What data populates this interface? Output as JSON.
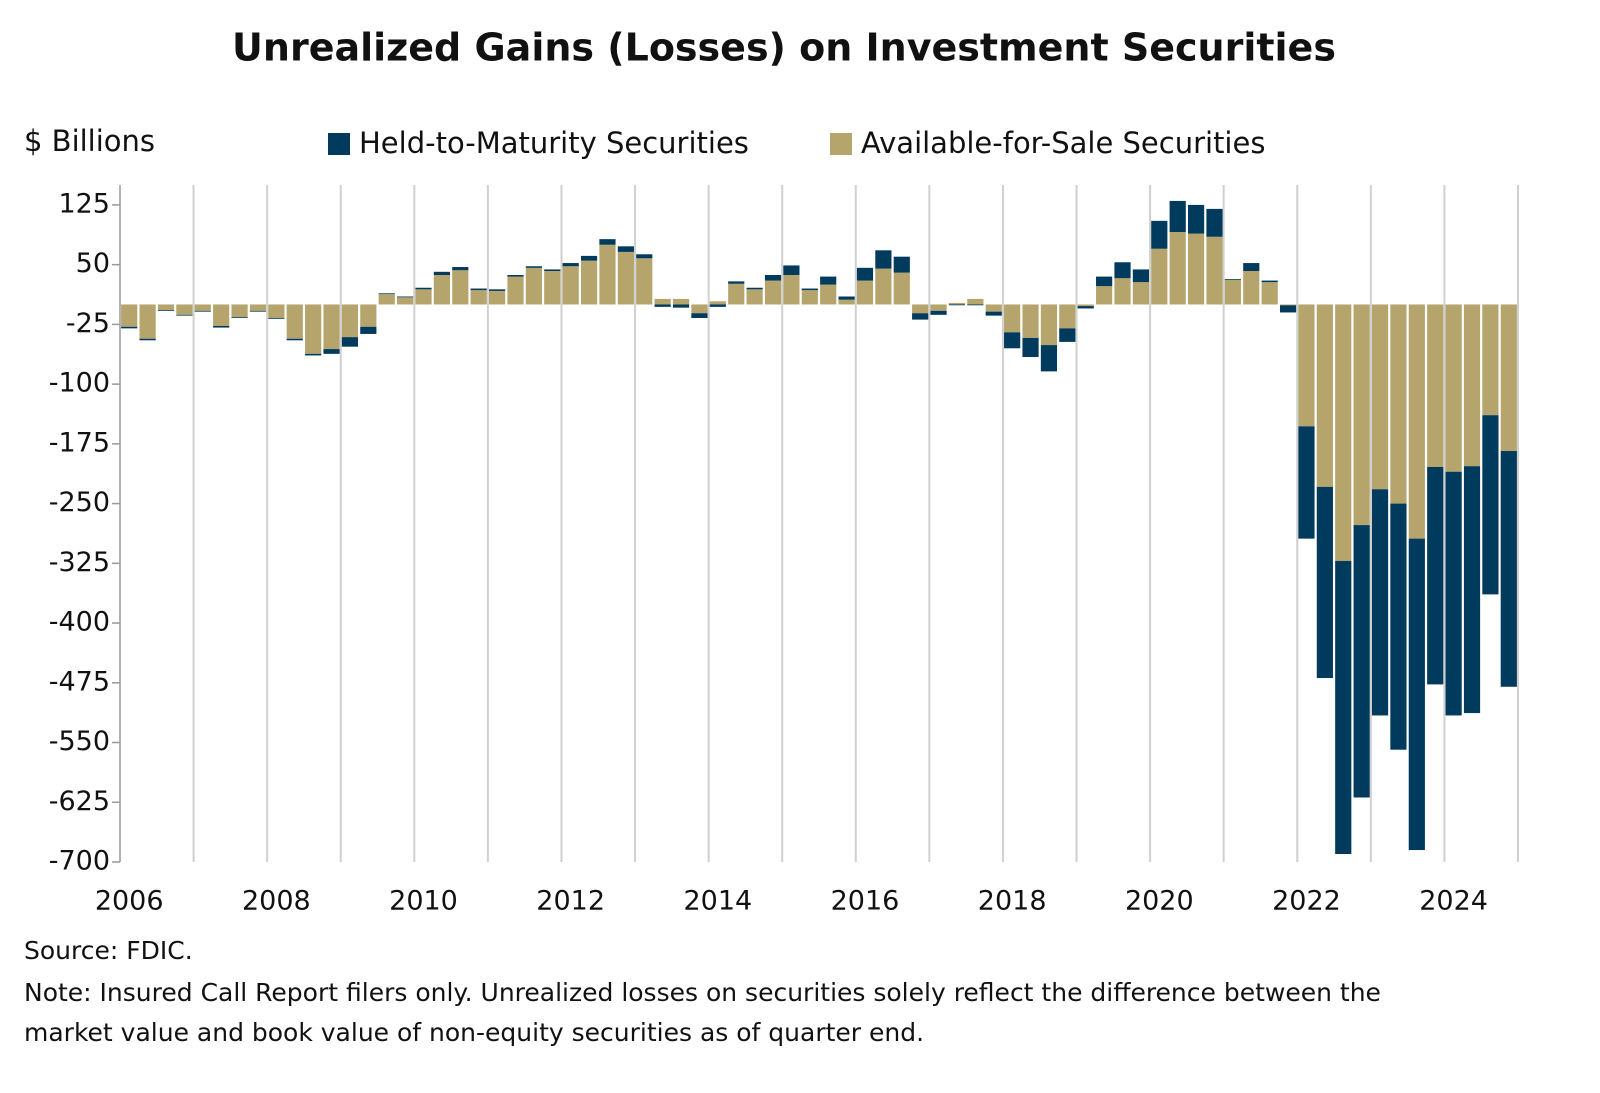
{
  "chart_data": {
    "type": "stacked_bar",
    "title": "Unrealized Gains (Losses) on Investment Securities",
    "y_label": "$ Billions",
    "source": "Source: FDIC.",
    "notes": [
      "Note: Insured Call Report filers only. Unrealized losses on securities solely reflect the difference between the",
      "market value and book value of non-equity securities as of quarter end."
    ],
    "categories": [
      "2006",
      null,
      null,
      null,
      null,
      null,
      null,
      null,
      "2008",
      null,
      null,
      null,
      null,
      null,
      null,
      null,
      "2010",
      null,
      null,
      null,
      null,
      null,
      null,
      null,
      "2012",
      null,
      null,
      null,
      null,
      null,
      null,
      null,
      "2014",
      null,
      null,
      null,
      null,
      null,
      null,
      null,
      "2016",
      null,
      null,
      null,
      null,
      null,
      null,
      null,
      "2018",
      null,
      null,
      null,
      null,
      null,
      null,
      null,
      "2020",
      null,
      null,
      null,
      null,
      null,
      null,
      null,
      "2022",
      null,
      null,
      null,
      null,
      null,
      null,
      null,
      "2024",
      null,
      null,
      null
    ],
    "series": [
      {
        "name": "Held-to-Maturity Securities",
        "color": "#003a5d",
        "values": [
          -2,
          -2,
          -1,
          -1,
          -1,
          -2,
          -1,
          -1,
          -1,
          -2,
          -2,
          -6,
          -12,
          -9,
          1,
          1,
          2,
          4,
          4,
          2,
          2,
          2,
          2,
          2,
          4,
          6,
          7,
          7,
          5,
          -3,
          -4,
          -6,
          -3,
          3,
          2,
          7,
          12,
          2,
          10,
          4,
          16,
          23,
          20,
          -8,
          -5,
          -1,
          -1,
          -5,
          -20,
          -24,
          -33,
          -17,
          -3,
          12,
          20,
          16,
          35,
          39,
          36,
          35,
          1,
          10,
          2,
          -9,
          -141,
          -240,
          -368,
          -342,
          -284,
          -309,
          -391,
          -273,
          -306,
          -310,
          -225,
          -296
        ]
      },
      {
        "name": "Available-for-Sale Securities",
        "color": "#b5a46c",
        "values": [
          -28,
          -43,
          -7,
          -13,
          -8,
          -27,
          -16,
          -8,
          -17,
          -43,
          -62,
          -56,
          -41,
          -28,
          13,
          9,
          19,
          37,
          43,
          18,
          17,
          35,
          46,
          42,
          48,
          55,
          75,
          66,
          58,
          7,
          7,
          -11,
          4,
          26,
          19,
          30,
          37,
          18,
          25,
          6,
          30,
          45,
          40,
          -11,
          -8,
          2,
          7,
          -9,
          -35,
          -42,
          -51,
          -30,
          -2,
          23,
          33,
          28,
          70,
          91,
          89,
          85,
          31,
          42,
          28,
          -1,
          -153,
          -229,
          -322,
          -277,
          -232,
          -250,
          -294,
          -204,
          -210,
          -203,
          -139,
          -184
        ]
      }
    ],
    "ylim": [
      -700,
      150
    ],
    "yticks": [
      125,
      50,
      -25,
      -100,
      -175,
      -250,
      -325,
      -400,
      -475,
      -550,
      -625,
      -700
    ]
  }
}
